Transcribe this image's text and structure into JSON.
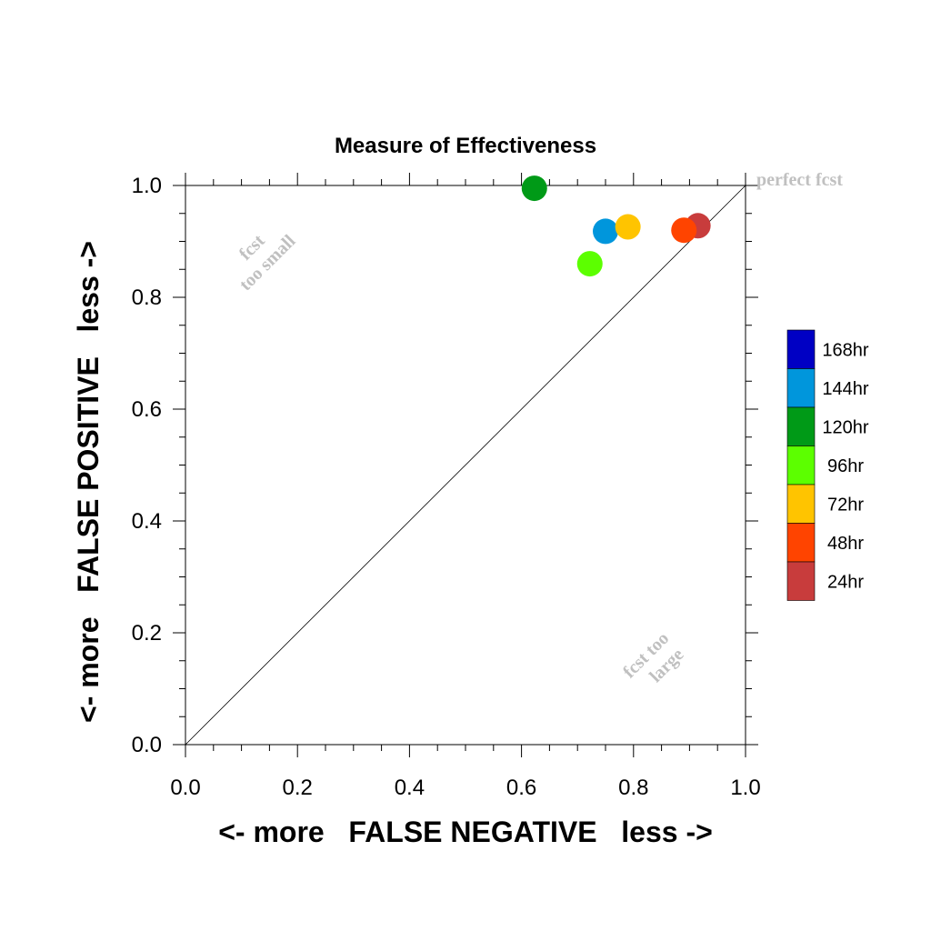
{
  "chart_data": {
    "type": "scatter",
    "title": "Measure of Effectiveness",
    "xlabel": "<- more   FALSE NEGATIVE   less ->",
    "ylabel": "<- more   FALSE POSITIVE   less ->",
    "xlim": [
      0.0,
      1.0
    ],
    "ylim": [
      0.0,
      1.0
    ],
    "xticks": [
      "0.0",
      "0.2",
      "0.4",
      "0.6",
      "0.8",
      "1.0"
    ],
    "yticks": [
      "0.0",
      "0.2",
      "0.4",
      "0.6",
      "0.8",
      "1.0"
    ],
    "grid": false,
    "diagonal_line": true,
    "annotations": {
      "perfect": "perfect fcst",
      "too_small_1": "fcst",
      "too_small_2": "too small",
      "too_large_1": "fcst too",
      "too_large_2": "large"
    },
    "legend": {
      "placement": "right",
      "entries": [
        {
          "label": "168hr",
          "color": "#0000c4"
        },
        {
          "label": "144hr",
          "color": "#0096dc"
        },
        {
          "label": "120hr",
          "color": "#009a17"
        },
        {
          "label": "96hr",
          "color": "#5cff00"
        },
        {
          "label": "72hr",
          "color": "#ffc400"
        },
        {
          "label": "48hr",
          "color": "#ff4400"
        },
        {
          "label": "24hr",
          "color": "#c83c3c"
        }
      ]
    },
    "series": [
      {
        "label": "120hr",
        "color": "#009a17",
        "x": 0.623,
        "y": 0.995
      },
      {
        "label": "144hr",
        "color": "#0096dc",
        "x": 0.75,
        "y": 0.918
      },
      {
        "label": "72hr",
        "color": "#ffc400",
        "x": 0.79,
        "y": 0.926
      },
      {
        "label": "96hr",
        "color": "#5cff00",
        "x": 0.722,
        "y": 0.86
      },
      {
        "label": "24hr",
        "color": "#c83c3c",
        "x": 0.915,
        "y": 0.928
      },
      {
        "label": "48hr",
        "color": "#ff4400",
        "x": 0.89,
        "y": 0.92
      }
    ]
  }
}
